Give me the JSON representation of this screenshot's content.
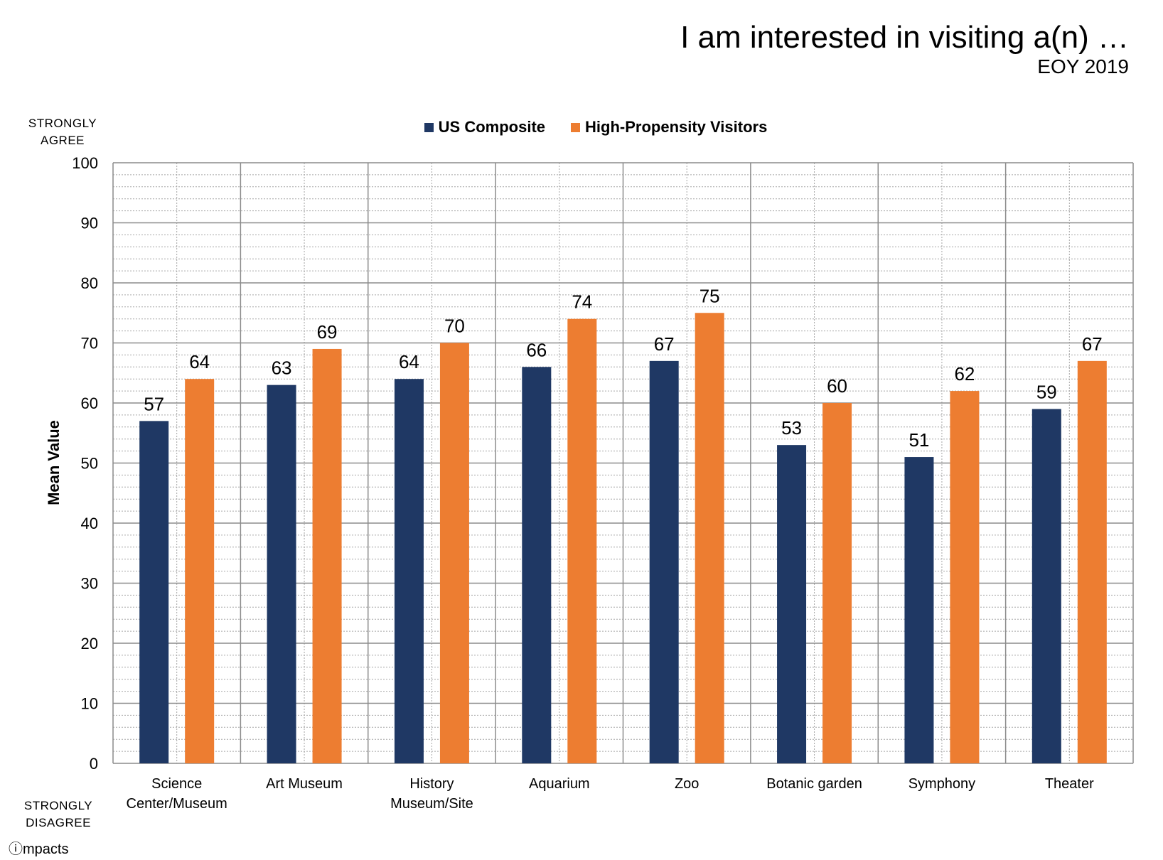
{
  "header": {
    "title": "I am interested in visiting a(n) …",
    "subtitle": "EOY 2019"
  },
  "scale": {
    "top_label": "STRONGLY\nAGREE",
    "bottom_label": "STRONGLY\nDISAGREE"
  },
  "logo": {
    "text": "ⓘmpacts"
  },
  "colors": {
    "us_composite": "#1f3864",
    "high_propensity": "#ed7d31",
    "major_grid": "#8c8c8c",
    "minor_grid": "#a6a6a6"
  },
  "chart_data": {
    "type": "bar",
    "title": "I am interested in visiting a(n) …",
    "subtitle": "EOY 2019",
    "xlabel": "",
    "ylabel": "Mean Value",
    "ylim": [
      0,
      100
    ],
    "yticks": [
      0,
      10,
      20,
      30,
      40,
      50,
      60,
      70,
      80,
      90,
      100
    ],
    "grid": true,
    "legend_position": "top-center",
    "categories": [
      "Science\nCenter/Museum",
      "Art Museum",
      "History\nMuseum/Site",
      "Aquarium",
      "Zoo",
      "Botanic garden",
      "Symphony",
      "Theater"
    ],
    "series": [
      {
        "name": "US Composite",
        "values": [
          57,
          63,
          64,
          66,
          67,
          53,
          51,
          59
        ]
      },
      {
        "name": "High-Propensity Visitors",
        "values": [
          64,
          69,
          70,
          74,
          75,
          60,
          62,
          67
        ]
      }
    ]
  }
}
